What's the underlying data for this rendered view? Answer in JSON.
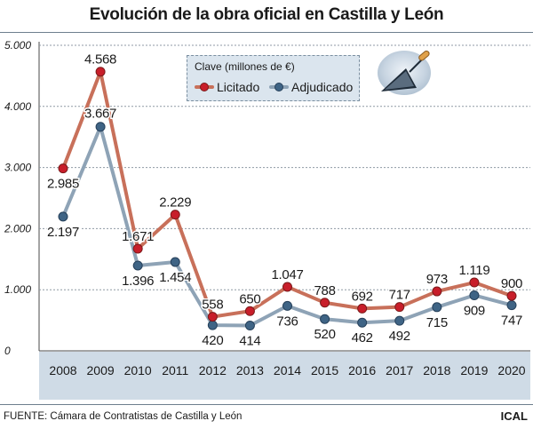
{
  "title": "Evolución de la obra oficial en Castilla y León",
  "source": "FUENTE: Cámara de Contratistas de Castilla y León",
  "brand": "ICAL",
  "legend": {
    "title": "Clave (millones de €)",
    "licitado_label": "Licitado",
    "adjudicado_label": "Adjudicado"
  },
  "colors": {
    "licitado_line": "#c8705a",
    "licitado_dot": "#c81e2a",
    "adjudicado_line": "#8ea3b6",
    "adjudicado_dot": "#3f6485",
    "axis_band": "#cfdbe6",
    "grid": "#8f9aa4"
  },
  "icons": {
    "badge": "trowel-icon"
  },
  "chart_data": {
    "type": "line",
    "title": "Evolución de la obra oficial en Castilla y León",
    "xlabel": "",
    "ylabel": "millones de €",
    "ylim": [
      0,
      5000
    ],
    "yticks": [
      "0",
      "1.000",
      "2.000",
      "3.000",
      "4.000",
      "5.000"
    ],
    "ytick_values": [
      0,
      1000,
      2000,
      3000,
      4000,
      5000
    ],
    "categories": [
      "2008",
      "2009",
      "2010",
      "2011",
      "2012",
      "2013",
      "2014",
      "2015",
      "2016",
      "2017",
      "2018",
      "2019",
      "2020"
    ],
    "grid": true,
    "legend_position": "top-center",
    "series": [
      {
        "name": "Licitado",
        "values": [
          2985,
          4568,
          1671,
          2229,
          558,
          650,
          1047,
          788,
          692,
          717,
          973,
          1119,
          900
        ],
        "labels": [
          "2.985",
          "4.568",
          "1.671",
          "2.229",
          "558",
          "650",
          "1.047",
          "788",
          "692",
          "717",
          "973",
          "1.119",
          "900"
        ]
      },
      {
        "name": "Adjudicado",
        "values": [
          2197,
          3667,
          1396,
          1454,
          420,
          414,
          736,
          520,
          462,
          492,
          715,
          909,
          747
        ],
        "labels": [
          "2.197",
          "3.667",
          "1.396",
          "1.454",
          "420",
          "414",
          "736",
          "520",
          "462",
          "492",
          "715",
          "909",
          "747"
        ]
      }
    ]
  }
}
